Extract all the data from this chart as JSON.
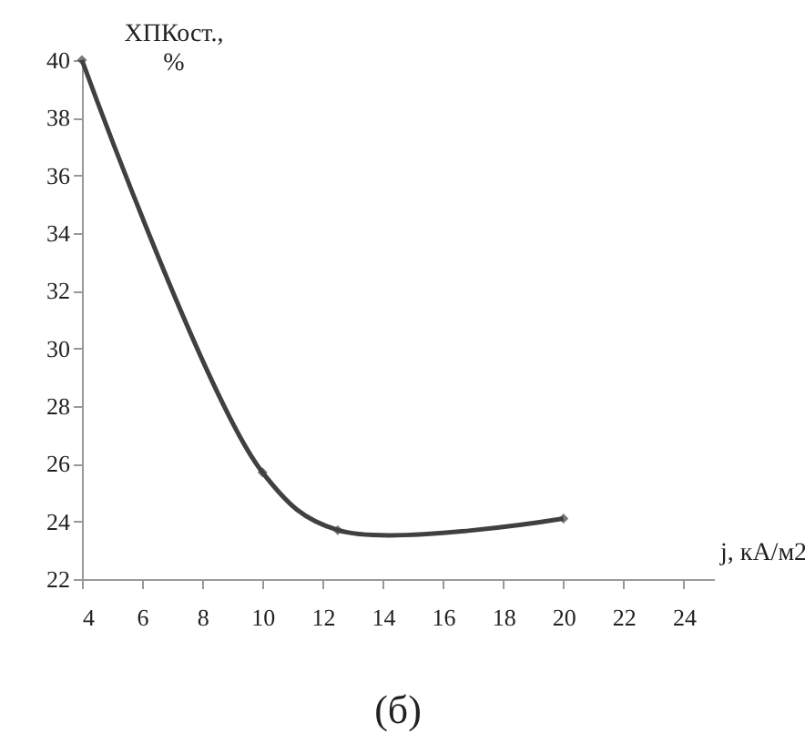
{
  "chart_data": {
    "type": "line",
    "x": [
      4,
      10,
      12.5,
      20
    ],
    "series": [
      {
        "color": "#404040",
        "values": [
          40,
          25.7,
          23.7,
          24.1
        ]
      }
    ],
    "xlim": [
      4,
      25
    ],
    "xticks": [
      4,
      6,
      8,
      10,
      12,
      14,
      16,
      18,
      20,
      22,
      24
    ],
    "ylim": [
      22,
      40
    ],
    "yticks": [
      22,
      24,
      26,
      28,
      30,
      32,
      34,
      36,
      38,
      40
    ],
    "xlabel": "j, кА/м2",
    "ylabel": "ХПКост., %",
    "annotations": [
      "(б)"
    ],
    "marker": "diamond",
    "line_style": "solid",
    "grid": false,
    "legend": false
  }
}
